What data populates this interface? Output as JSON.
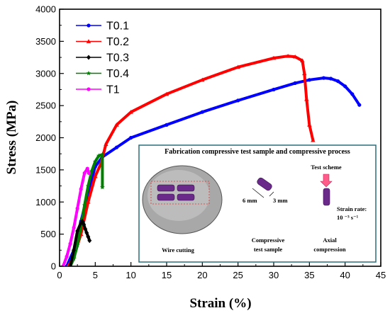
{
  "chart_data": {
    "type": "line",
    "xlabel": "Strain (%)",
    "ylabel": "Stress (MPa)",
    "xlim": [
      0,
      45
    ],
    "ylim": [
      0,
      4000
    ],
    "xticks": [
      0,
      5,
      10,
      15,
      20,
      25,
      30,
      35,
      40,
      45
    ],
    "yticks": [
      0,
      500,
      1000,
      1500,
      2000,
      2500,
      3000,
      3500,
      4000
    ],
    "legend_position": "top-left",
    "series": [
      {
        "name": "T0.1",
        "color": "#0000ff",
        "marker": "circle",
        "x": [
          1,
          2,
          3,
          4,
          5,
          6,
          8,
          10,
          15,
          20,
          25,
          30,
          33,
          35,
          37,
          38,
          39,
          40,
          41,
          42
        ],
        "y": [
          0,
          250,
          700,
          1150,
          1550,
          1700,
          1850,
          2000,
          2200,
          2400,
          2580,
          2750,
          2850,
          2900,
          2930,
          2920,
          2880,
          2800,
          2680,
          2510
        ]
      },
      {
        "name": "T0.2",
        "color": "#ff0000",
        "marker": "triangle",
        "x": [
          1.2,
          2,
          3,
          4,
          5,
          5.8,
          6.5,
          8,
          10,
          15,
          20,
          25,
          30,
          32,
          33,
          34,
          34.3,
          34.6,
          35,
          35.5
        ],
        "y": [
          0,
          150,
          500,
          1000,
          1400,
          1600,
          1900,
          2200,
          2400,
          2680,
          2900,
          3100,
          3240,
          3270,
          3260,
          3200,
          3000,
          2600,
          2200,
          1960
        ]
      },
      {
        "name": "T0.3",
        "color": "#000000",
        "marker": "diamond",
        "x": [
          1.5,
          2,
          2.5,
          3,
          3.2,
          3.4,
          3.6,
          3.8,
          4,
          4.2
        ],
        "y": [
          0,
          250,
          550,
          680,
          700,
          650,
          580,
          520,
          460,
          400
        ]
      },
      {
        "name": "T0.4",
        "color": "#008000",
        "marker": "star",
        "x": [
          1.5,
          2,
          2.5,
          3,
          3.5,
          4,
          4.5,
          5,
          5.5,
          6,
          6
        ],
        "y": [
          0,
          120,
          330,
          620,
          950,
          1250,
          1480,
          1630,
          1720,
          1740,
          1230
        ]
      },
      {
        "name": "T1",
        "color": "#ff00ff",
        "marker": "circle",
        "x": [
          0.5,
          1,
          1.5,
          2,
          2.5,
          3,
          3.5,
          3.9,
          4.1
        ],
        "y": [
          0,
          150,
          350,
          600,
          900,
          1200,
          1450,
          1520,
          1450
        ]
      }
    ],
    "inset": {
      "title": "Fabrication compressive test sample and compressive process",
      "label_wire_cutting": "Wire cutting",
      "label_sample_line1": "Compressive",
      "label_sample_line2": "test sample",
      "label_compression_line1": "Axial",
      "label_compression_line2": "compression",
      "dim_6": "6 mm",
      "dim_3": "3 mm",
      "test_scheme": "Test scheme",
      "strain_rate_line1": "Strain rate:",
      "strain_rate_line2": "10 ⁻³ s⁻¹"
    }
  }
}
